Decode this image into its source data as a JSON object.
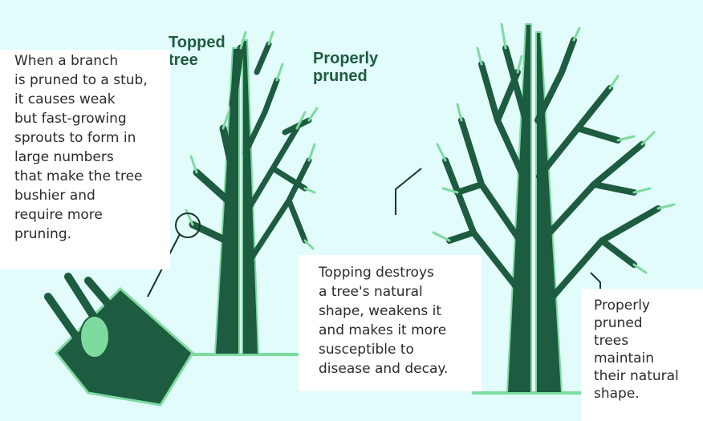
{
  "labels": {
    "topped": [
      "Topped",
      "tree"
    ],
    "properly_pruned": [
      "Properly",
      "pruned"
    ]
  },
  "captions": {
    "stub": [
      "When a branch",
      "is pruned to a stub,",
      "it causes weak",
      "but fast-growing",
      "sprouts to form in",
      "large numbers",
      "that make the tree",
      "bushier and",
      "require more",
      "pruning."
    ],
    "topping": [
      "Topping destroys",
      "a tree's natural",
      "shape, weakens it",
      "and makes it more",
      "susceptible to",
      "disease and decay."
    ],
    "pruned": [
      "Properly",
      "pruned",
      "trees",
      "maintain",
      "their natural",
      "shape."
    ]
  }
}
